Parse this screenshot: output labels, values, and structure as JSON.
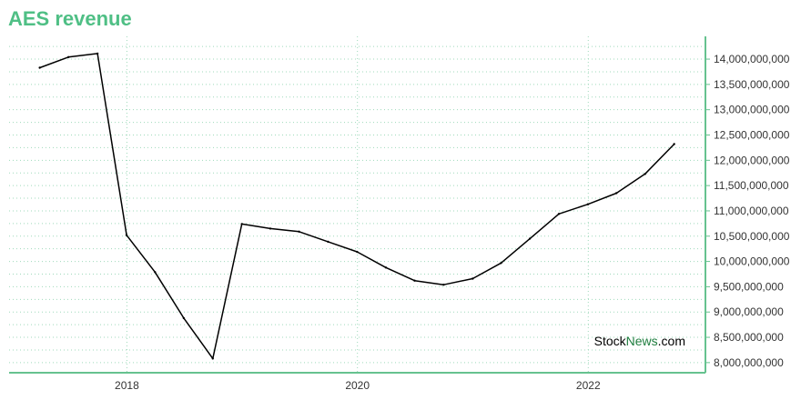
{
  "chart_data": {
    "type": "line",
    "title": "AES revenue",
    "xlabel": "",
    "ylabel": "",
    "x": [
      "2017-03-31",
      "2017-06-30",
      "2017-09-30",
      "2017-12-31",
      "2018-03-31",
      "2018-06-30",
      "2018-09-30",
      "2018-12-31",
      "2019-03-31",
      "2019-06-30",
      "2019-09-30",
      "2019-12-31",
      "2020-03-31",
      "2020-06-30",
      "2020-09-30",
      "2020-12-31",
      "2021-03-31",
      "2021-06-30",
      "2021-09-30",
      "2021-12-31",
      "2022-03-31",
      "2022-06-30",
      "2022-09-30"
    ],
    "series": [
      {
        "name": "",
        "values": [
          13830000000,
          14040000000,
          14110000000,
          10520000000,
          9790000000,
          8880000000,
          8080000000,
          10740000000,
          10650000000,
          10590000000,
          10390000000,
          10190000000,
          9880000000,
          9620000000,
          9540000000,
          9660000000,
          9970000000,
          10450000000,
          10940000000,
          11130000000,
          11350000000,
          11730000000,
          12320000000
        ]
      }
    ],
    "x_ticks": [
      "2018",
      "2020",
      "2022"
    ],
    "y_ticks": [
      "8,000,000,000",
      "8,500,000,000",
      "9,000,000,000",
      "9,500,000,000",
      "10,000,000,000",
      "10,500,000,000",
      "11,000,000,000",
      "11,500,000,000",
      "12,000,000,000",
      "12,500,000,000",
      "13,000,000,000",
      "13,500,000,000",
      "14,000,000,000"
    ],
    "ylim": [
      7800000000,
      14450000000
    ],
    "xlim": [
      "2016-12-24",
      "2023-01-07"
    ],
    "grid": true,
    "y_axis_side": "right",
    "colors": {
      "title": "#4fbf85",
      "axis": "#66c28f",
      "grid": "#9fd9bb",
      "line": "#000000"
    },
    "watermark": {
      "part1": "Stock",
      "part2": "News",
      "part3": ".com"
    }
  }
}
